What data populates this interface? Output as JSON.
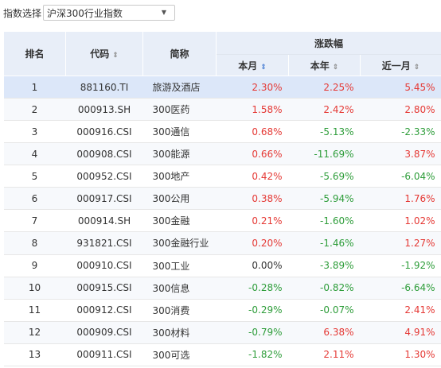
{
  "filter": {
    "label": "指数选择",
    "selected": "沪深300行业指数"
  },
  "table": {
    "headers": {
      "rank": "排名",
      "code": "代码",
      "name": "简称",
      "group": "涨跌幅",
      "month": "本月",
      "year": "本年",
      "recent_month": "近一月"
    },
    "sort_glyph": "⇕",
    "rows": [
      {
        "rank": "1",
        "code": "881160.TI",
        "name": "旅游及酒店",
        "month": "2.30%",
        "year": "2.25%",
        "recent": "5.45%"
      },
      {
        "rank": "2",
        "code": "000913.SH",
        "name": "300医药",
        "month": "1.58%",
        "year": "2.42%",
        "recent": "2.80%"
      },
      {
        "rank": "3",
        "code": "000916.CSI",
        "name": "300通信",
        "month": "0.68%",
        "year": "-5.13%",
        "recent": "-2.33%"
      },
      {
        "rank": "4",
        "code": "000908.CSI",
        "name": "300能源",
        "month": "0.66%",
        "year": "-11.69%",
        "recent": "3.87%"
      },
      {
        "rank": "5",
        "code": "000952.CSI",
        "name": "300地产",
        "month": "0.42%",
        "year": "-5.69%",
        "recent": "-6.04%"
      },
      {
        "rank": "6",
        "code": "000917.CSI",
        "name": "300公用",
        "month": "0.38%",
        "year": "-5.94%",
        "recent": "1.76%"
      },
      {
        "rank": "7",
        "code": "000914.SH",
        "name": "300金融",
        "month": "0.21%",
        "year": "-1.60%",
        "recent": "1.02%"
      },
      {
        "rank": "8",
        "code": "931821.CSI",
        "name": "300金融行业",
        "month": "0.20%",
        "year": "-1.46%",
        "recent": "1.27%"
      },
      {
        "rank": "9",
        "code": "000910.CSI",
        "name": "300工业",
        "month": "0.00%",
        "year": "-3.89%",
        "recent": "-1.92%"
      },
      {
        "rank": "10",
        "code": "000915.CSI",
        "name": "300信息",
        "month": "-0.28%",
        "year": "-0.82%",
        "recent": "-6.64%"
      },
      {
        "rank": "11",
        "code": "000912.CSI",
        "name": "300消费",
        "month": "-0.29%",
        "year": "-0.07%",
        "recent": "2.41%"
      },
      {
        "rank": "12",
        "code": "000909.CSI",
        "name": "300材料",
        "month": "-0.79%",
        "year": "6.38%",
        "recent": "4.91%"
      },
      {
        "rank": "13",
        "code": "000911.CSI",
        "name": "300可选",
        "month": "-1.82%",
        "year": "2.11%",
        "recent": "1.30%"
      }
    ]
  },
  "colors": {
    "up": "#e53935",
    "down": "#2e9d3a",
    "header_bg": "#e8eef8",
    "selected_row": "#dce7f9"
  }
}
